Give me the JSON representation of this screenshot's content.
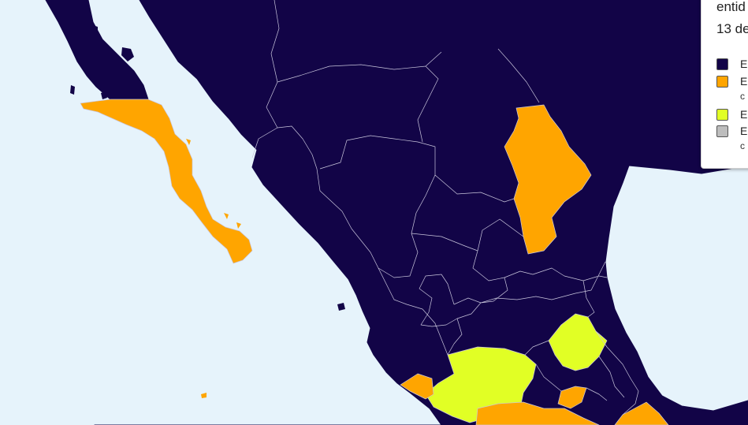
{
  "legend": {
    "title_line1": "entid",
    "title_line2": "13 de",
    "items": [
      {
        "label": "E",
        "sublabel": "",
        "color": "#120447"
      },
      {
        "label": "E",
        "sublabel": "c",
        "color": "#ffa500"
      },
      {
        "label": "E",
        "sublabel": "",
        "color": "#e1ff25"
      },
      {
        "label": "E",
        "sublabel": "c",
        "color": "#bdbdbd"
      }
    ]
  },
  "map_colors": {
    "background": "#e6f3fb",
    "category_1": "#120447",
    "category_2": "#ffa500",
    "category_3": "#e1ff25",
    "border": "#c9c6dc"
  }
}
